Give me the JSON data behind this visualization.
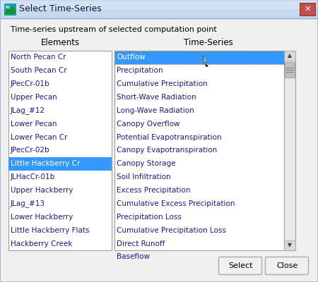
{
  "title": "Select Time-Series",
  "subtitle": "Time-series upstream of selected computation point",
  "elements_header": "Elements",
  "timeseries_header": "Time-Series",
  "elements": [
    "North Pecan Cr",
    "South Pecan Cr",
    "JPecCr-01b",
    "Upper Pecan",
    "JLag_#12",
    "Lower Pecan",
    "Lower Pecan Cr",
    "JPecCr-02b",
    "Little Hackberry Cr",
    "JLHacCr-01b",
    "Upper Hackberry",
    "JLag_#13",
    "Lower Hackberry",
    "Little Hackberry Flats",
    "Hackberry Creek"
  ],
  "timeseries": [
    "Outflow",
    "Precipitation",
    "Cumulative Precipitation",
    "Short-Wave Radiation",
    "Long-Wave Radiation",
    "Canopy Overflow",
    "Potential Evapotranspiration",
    "Canopy Evapotranspiration",
    "Canopy Storage",
    "Soil Infiltration",
    "Excess Precipitation",
    "Cumulative Excess Precipitation",
    "Precipitation Loss",
    "Cumulative Precipitation Loss",
    "Direct Runoff",
    "Baseflow"
  ],
  "selected_element_idx": 8,
  "selected_timeseries_idx": 0,
  "element_selected_color": "#3399FF",
  "timeseries_selected_color": "#3399FF",
  "dialog_bg": "#ECF3FA",
  "inner_bg": "#F0F0F0",
  "list_bg": "#FFFFFF",
  "title_bar_color": "#C5D9F0",
  "close_btn_color": "#C0504D",
  "border_color": "#A0B8D0",
  "scrollbar_bg": "#E8E8E8",
  "scrollbar_thumb": "#C0C0C0",
  "button_labels": [
    "Select",
    "Close"
  ],
  "text_color_selected": "#FFFFFF",
  "text_color_normal": "#000000",
  "font_size": 7.5,
  "header_font_size": 8.5,
  "title_font_size": 9.0,
  "list_text_color": "#1A1A8C"
}
